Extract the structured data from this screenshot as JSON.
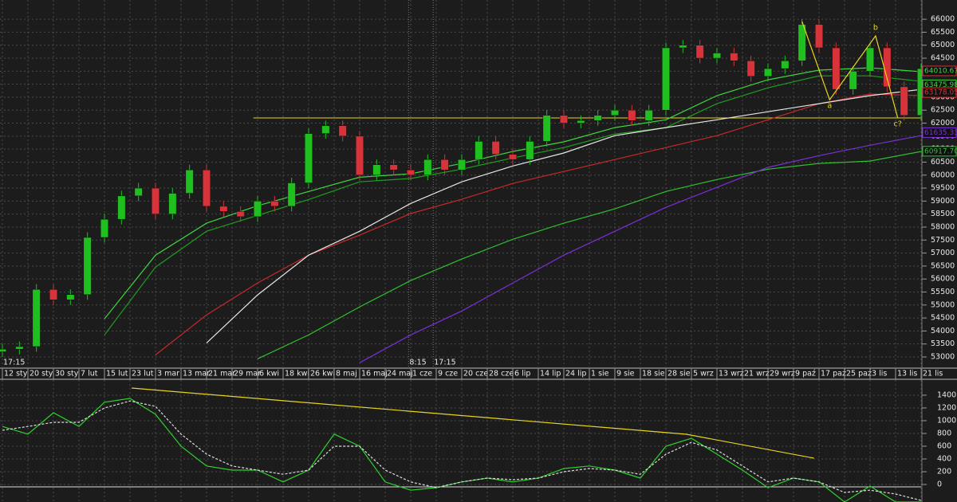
{
  "chart_data": {
    "type": "candlestick",
    "xlim": [
      -0.5625,
      216
    ],
    "ylim": [
      52570,
      66740
    ],
    "grid": true,
    "xticks": [
      {
        "value": 0,
        "label": "12 sty"
      },
      {
        "value": 6,
        "label": "20 sty"
      },
      {
        "value": 12,
        "label": "30 sty"
      },
      {
        "value": 18,
        "label": "7 lut"
      },
      {
        "value": 24,
        "label": "15 lut"
      },
      {
        "value": 30,
        "label": "23 lut"
      },
      {
        "value": 36,
        "label": "3 mar"
      },
      {
        "value": 42,
        "label": "13 mar"
      },
      {
        "value": 48,
        "label": "21 mar"
      },
      {
        "value": 54,
        "label": "29 mar"
      },
      {
        "value": 60,
        "label": "6 kwi"
      },
      {
        "value": 66,
        "label": "18 kwi"
      },
      {
        "value": 72,
        "label": "26 kwi"
      },
      {
        "value": 78,
        "label": "8 maj"
      },
      {
        "value": 84,
        "label": "16 maj"
      },
      {
        "value": 90,
        "label": "24 maj"
      },
      {
        "value": 96,
        "label": "1 cze"
      },
      {
        "value": 102,
        "label": "9 cze"
      },
      {
        "value": 108,
        "label": "20 cze"
      },
      {
        "value": 114,
        "label": "28 cze"
      },
      {
        "value": 120,
        "label": "6 lip"
      },
      {
        "value": 126,
        "label": "14 lip"
      },
      {
        "value": 132,
        "label": "24 lip"
      },
      {
        "value": 138,
        "label": "1 sie"
      },
      {
        "value": 144,
        "label": "9 sie"
      },
      {
        "value": 150,
        "label": "18 sie"
      },
      {
        "value": 156,
        "label": "28 sie"
      },
      {
        "value": 162,
        "label": "5 wrz"
      },
      {
        "value": 168,
        "label": "13 wrz"
      },
      {
        "value": 174,
        "label": "21 wrz"
      },
      {
        "value": 180,
        "label": "29 wrz"
      },
      {
        "value": 186,
        "label": "9 paź"
      },
      {
        "value": 192,
        "label": "17 paź"
      },
      {
        "value": 198,
        "label": "25 paź"
      },
      {
        "value": 204,
        "label": "3 lis"
      },
      {
        "value": 210,
        "label": "13 lis"
      },
      {
        "value": 216,
        "label": "21 lis"
      }
    ],
    "yticks": [
      53000,
      53500,
      54000,
      54500,
      55000,
      55500,
      56000,
      56500,
      57000,
      57500,
      58000,
      58500,
      59000,
      59500,
      60000,
      60500,
      61000,
      61500,
      62000,
      62500,
      63000,
      63500,
      64000,
      64500,
      65000,
      65500,
      66000
    ],
    "candles": {
      "up_color": "#1fbf1f",
      "down_color": "#d8323a",
      "x": [
        0,
        4,
        8,
        12,
        16,
        20,
        24,
        28,
        32,
        36,
        40,
        44,
        48,
        52,
        56,
        60,
        64,
        68,
        72,
        76,
        80,
        84,
        88,
        92,
        96,
        100,
        104,
        108,
        112,
        116,
        120,
        124,
        128,
        132,
        136,
        140,
        144,
        148,
        152,
        156,
        160,
        164,
        168,
        172,
        176,
        180,
        184,
        188,
        192,
        196,
        200,
        204,
        208,
        212,
        216
      ],
      "open": [
        53200,
        53300,
        53400,
        55600,
        55200,
        55400,
        57600,
        58300,
        59200,
        59500,
        58500,
        59300,
        60200,
        58800,
        58600,
        58400,
        59000,
        58800,
        59700,
        61600,
        61900,
        61500,
        60000,
        60400,
        60200,
        60000,
        60600,
        60200,
        60600,
        61300,
        60800,
        60600,
        61300,
        62300,
        62000,
        62100,
        62300,
        62500,
        62100,
        62500,
        64900,
        65000,
        64500,
        64700,
        64400,
        63800,
        64100,
        64400,
        65800,
        64900,
        63300,
        64000,
        64900,
        63400,
        62300
      ],
      "high": [
        53500,
        53600,
        55800,
        55800,
        55600,
        57800,
        58500,
        59400,
        59700,
        59700,
        59500,
        60400,
        60400,
        59000,
        58800,
        59200,
        59200,
        59900,
        61800,
        62100,
        62100,
        61700,
        60600,
        60600,
        60400,
        60800,
        60800,
        60800,
        61500,
        61500,
        61000,
        61500,
        62500,
        62500,
        62300,
        62500,
        62700,
        62700,
        62700,
        65100,
        65200,
        65200,
        64900,
        64900,
        64600,
        64300,
        64600,
        66000,
        66000,
        65100,
        64200,
        65100,
        65100,
        63600,
        64300
      ],
      "low": [
        53000,
        53100,
        53200,
        55000,
        55000,
        55200,
        57400,
        58100,
        59000,
        58300,
        58300,
        59100,
        58600,
        58400,
        58200,
        58200,
        58600,
        58600,
        59500,
        61400,
        61300,
        59800,
        59800,
        60000,
        59800,
        59800,
        60000,
        60000,
        60400,
        60600,
        60400,
        60400,
        61100,
        61800,
        61800,
        61900,
        62100,
        61900,
        61900,
        62300,
        64700,
        64300,
        64300,
        64200,
        63600,
        63600,
        63900,
        64200,
        64700,
        63100,
        63100,
        63800,
        63200,
        62100,
        62100
      ],
      "close": [
        53300,
        53400,
        55600,
        55200,
        55400,
        57600,
        58300,
        59200,
        59500,
        58500,
        59300,
        60200,
        58800,
        58600,
        58400,
        59000,
        58800,
        59700,
        61600,
        61900,
        61500,
        60000,
        60400,
        60200,
        60000,
        60600,
        60200,
        60600,
        61300,
        60800,
        60600,
        61300,
        62300,
        62000,
        62100,
        62300,
        62500,
        62100,
        62500,
        64900,
        65000,
        64500,
        64700,
        64400,
        63800,
        64100,
        64400,
        65800,
        64900,
        63300,
        64000,
        64900,
        63400,
        62300,
        64100
      ]
    },
    "line_x": [
      0,
      12,
      24,
      36,
      48,
      60,
      72,
      84,
      96,
      108,
      120,
      132,
      144,
      156,
      168,
      180,
      192,
      204,
      216
    ],
    "lines": [
      {
        "color": "#3ed63e",
        "values": [
          null,
          null,
          54470,
          56920,
          58150,
          58820,
          59370,
          59920,
          60050,
          60450,
          60910,
          61280,
          61830,
          62130,
          63060,
          63670,
          64040,
          64130,
          63980
        ]
      },
      {
        "color": "#1e9e1e",
        "values": [
          null,
          null,
          53850,
          56460,
          57840,
          58450,
          59060,
          59740,
          59870,
          60230,
          60660,
          61060,
          61580,
          61830,
          62750,
          63360,
          63820,
          63820,
          63610
        ]
      },
      {
        "color": "#c8282a",
        "values": [
          null,
          null,
          null,
          53080,
          54620,
          55850,
          56920,
          57690,
          58520,
          59070,
          59680,
          60140,
          60600,
          61060,
          61520,
          62130,
          62750,
          63120,
          63060
        ]
      },
      {
        "color": "#e6e6e6",
        "values": [
          null,
          null,
          null,
          null,
          53540,
          55390,
          56920,
          57840,
          58910,
          59740,
          60350,
          60850,
          61520,
          61830,
          62130,
          62440,
          62750,
          63060,
          63300
        ]
      },
      {
        "color": "#2fbf2f",
        "values": [
          null,
          null,
          null,
          null,
          null,
          52930,
          53850,
          54930,
          55940,
          56770,
          57530,
          58150,
          58700,
          59370,
          59830,
          60230,
          60450,
          60540,
          60910
        ]
      },
      {
        "color": "#7a2fd8",
        "values": [
          null,
          null,
          null,
          null,
          null,
          null,
          null,
          52780,
          53850,
          54770,
          55850,
          56920,
          57840,
          58760,
          59530,
          60300,
          60750,
          61150,
          61520
        ]
      }
    ],
    "support": {
      "value": 62200,
      "x": [
        59,
        216
      ],
      "color": "#e8d420"
    },
    "wave": {
      "color": "#e8d420",
      "x": [
        188,
        194.5,
        205.3,
        210.5
      ],
      "values": [
        65910,
        62900,
        65360,
        62200
      ],
      "labels": [
        null,
        "a",
        "b",
        "c?"
      ]
    },
    "price_labels": [
      {
        "value": 64010.67,
        "label": "64010.67",
        "color": "#3ed63e",
        "border": "#d8323a"
      },
      {
        "value": 63475.98,
        "label": "63475.98",
        "color": "#3ed63e",
        "border": "#3ed63e"
      },
      {
        "value": 63178.05,
        "label": "63178.05",
        "color": "#d8323a",
        "border": "#d8323a"
      },
      {
        "value": 61635.33,
        "label": "61635.33",
        "color": "#7a2fd8",
        "border": "#7a2fd8"
      },
      {
        "value": 60917.7,
        "label": "60917.70",
        "color": "#2fbf2f",
        "border": "#2fbf2f"
      }
    ],
    "session_labels": [
      {
        "x": 0,
        "label": "17:15"
      },
      {
        "x": 95.5,
        "label": "8:15"
      },
      {
        "x": 101.3,
        "label": "17:15"
      }
    ],
    "oscillator": {
      "ylim": [
        -275,
        1637
      ],
      "yticks": [
        0,
        200,
        400,
        600,
        800,
        1000,
        1200,
        1400
      ],
      "zero_line": true,
      "x": [
        0,
        6,
        12,
        18,
        24,
        30,
        36,
        42,
        48,
        54,
        60,
        66,
        72,
        78,
        84,
        90,
        96,
        102,
        108,
        114,
        120,
        126,
        132,
        138,
        144,
        150,
        156,
        162,
        168,
        174,
        180,
        186,
        192,
        198,
        204,
        210,
        216
      ],
      "series": [
        {
          "color": "#2fd02f",
          "dashed": false,
          "values": [
            910,
            790,
            1125,
            910,
            1290,
            1350,
            1100,
            600,
            290,
            225,
            225,
            40,
            225,
            790,
            600,
            40,
            -90,
            -50,
            40,
            100,
            40,
            100,
            250,
            290,
            225,
            100,
            600,
            725,
            475,
            225,
            -50,
            100,
            40,
            -275,
            -25,
            -275,
            -275
          ]
        },
        {
          "color": "#dddddd",
          "dashed": true,
          "values": [
            850,
            910,
            975,
            975,
            1200,
            1310,
            1225,
            790,
            475,
            290,
            225,
            160,
            225,
            600,
            600,
            225,
            40,
            -50,
            40,
            100,
            75,
            100,
            200,
            250,
            225,
            160,
            475,
            660,
            540,
            290,
            40,
            100,
            40,
            -125,
            -90,
            -150,
            -250
          ]
        }
      ],
      "trendline": {
        "color": "#e8d420",
        "x": [
          30.4,
          160.8,
          190.8
        ],
        "values": [
          1512,
          787,
          412
        ]
      }
    }
  }
}
